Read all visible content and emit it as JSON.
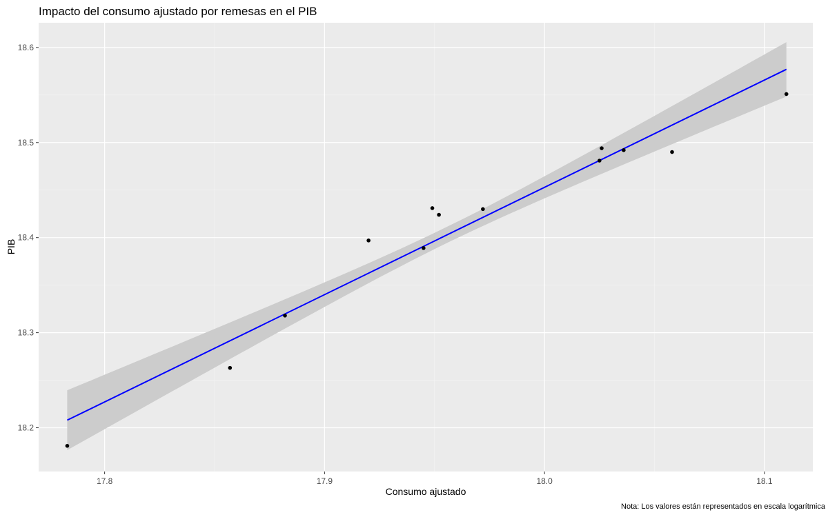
{
  "chart_data": {
    "type": "scatter",
    "title": "Impacto del consumo ajustado por remesas en el PIB",
    "xlabel": "Consumo ajustado",
    "ylabel": "PIB",
    "caption": "Nota: Los valores están representados en escala logarítmica",
    "xlim": [
      17.77,
      18.122
    ],
    "ylim": [
      18.154,
      18.626
    ],
    "x_ticks": [
      17.8,
      17.9,
      18.0,
      18.1
    ],
    "x_tick_labels": [
      "17.8",
      "17.9",
      "18.0",
      "18.1"
    ],
    "y_ticks": [
      18.2,
      18.3,
      18.4,
      18.5,
      18.6
    ],
    "y_tick_labels": [
      "18.2",
      "18.3",
      "18.4",
      "18.5",
      "18.6"
    ],
    "grid": true,
    "points": {
      "x": [
        17.783,
        17.857,
        17.882,
        17.92,
        17.945,
        17.949,
        17.952,
        17.972,
        18.025,
        18.026,
        18.036,
        18.058,
        18.11
      ],
      "y": [
        18.181,
        18.263,
        18.318,
        18.397,
        18.389,
        18.431,
        18.424,
        18.43,
        18.481,
        18.494,
        18.492,
        18.49,
        18.551
      ]
    },
    "fit": {
      "method": "linear",
      "x": [
        17.783,
        18.11
      ],
      "y": [
        18.208,
        18.577
      ],
      "ci_lower": [
        18.175,
        18.548
      ],
      "ci_upper": [
        18.242,
        18.607
      ],
      "ci_center_x": 17.955,
      "ci_center_half_width": 0.0085
    },
    "colors": {
      "panel_background": "#ebebeb",
      "grid_major": "#ffffff",
      "grid_minor": "#f5f5f5",
      "points": "#000000",
      "fit_line": "#0000ff",
      "ci_band": "#cccccc",
      "tick_label": "#4d4d4d"
    }
  }
}
